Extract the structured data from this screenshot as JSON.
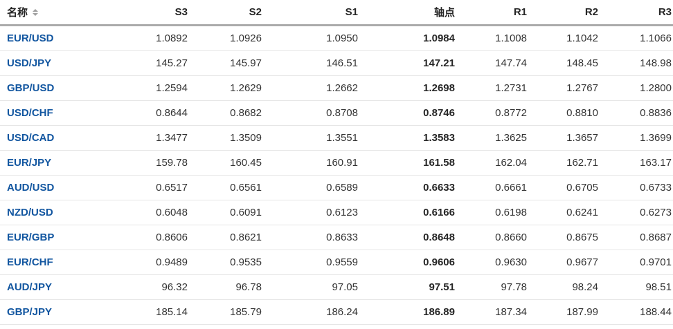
{
  "colors": {
    "pair_link": "#1256a0",
    "value_text": "#333333",
    "pivot_text": "#262626",
    "header_border": "#ababab",
    "row_divider": "#e6e6e6",
    "sort_icon": "#a0a0a0"
  },
  "table": {
    "columns": [
      {
        "key": "name",
        "label": "名称",
        "sortable": true,
        "align": "left"
      },
      {
        "key": "s3",
        "label": "S3",
        "sortable": false,
        "align": "right"
      },
      {
        "key": "s2",
        "label": "S2",
        "sortable": false,
        "align": "right"
      },
      {
        "key": "s1",
        "label": "S1",
        "sortable": false,
        "align": "right"
      },
      {
        "key": "pivot",
        "label": "轴点",
        "sortable": false,
        "align": "right"
      },
      {
        "key": "r1",
        "label": "R1",
        "sortable": false,
        "align": "right"
      },
      {
        "key": "r2",
        "label": "R2",
        "sortable": false,
        "align": "right"
      },
      {
        "key": "r3",
        "label": "R3",
        "sortable": false,
        "align": "right"
      }
    ],
    "rows": [
      {
        "name": "EUR/USD",
        "s3": "1.0892",
        "s2": "1.0926",
        "s1": "1.0950",
        "pivot": "1.0984",
        "r1": "1.1008",
        "r2": "1.1042",
        "r3": "1.1066"
      },
      {
        "name": "USD/JPY",
        "s3": "145.27",
        "s2": "145.97",
        "s1": "146.51",
        "pivot": "147.21",
        "r1": "147.74",
        "r2": "148.45",
        "r3": "148.98"
      },
      {
        "name": "GBP/USD",
        "s3": "1.2594",
        "s2": "1.2629",
        "s1": "1.2662",
        "pivot": "1.2698",
        "r1": "1.2731",
        "r2": "1.2767",
        "r3": "1.2800"
      },
      {
        "name": "USD/CHF",
        "s3": "0.8644",
        "s2": "0.8682",
        "s1": "0.8708",
        "pivot": "0.8746",
        "r1": "0.8772",
        "r2": "0.8810",
        "r3": "0.8836"
      },
      {
        "name": "USD/CAD",
        "s3": "1.3477",
        "s2": "1.3509",
        "s1": "1.3551",
        "pivot": "1.3583",
        "r1": "1.3625",
        "r2": "1.3657",
        "r3": "1.3699"
      },
      {
        "name": "EUR/JPY",
        "s3": "159.78",
        "s2": "160.45",
        "s1": "160.91",
        "pivot": "161.58",
        "r1": "162.04",
        "r2": "162.71",
        "r3": "163.17"
      },
      {
        "name": "AUD/USD",
        "s3": "0.6517",
        "s2": "0.6561",
        "s1": "0.6589",
        "pivot": "0.6633",
        "r1": "0.6661",
        "r2": "0.6705",
        "r3": "0.6733"
      },
      {
        "name": "NZD/USD",
        "s3": "0.6048",
        "s2": "0.6091",
        "s1": "0.6123",
        "pivot": "0.6166",
        "r1": "0.6198",
        "r2": "0.6241",
        "r3": "0.6273"
      },
      {
        "name": "EUR/GBP",
        "s3": "0.8606",
        "s2": "0.8621",
        "s1": "0.8633",
        "pivot": "0.8648",
        "r1": "0.8660",
        "r2": "0.8675",
        "r3": "0.8687"
      },
      {
        "name": "EUR/CHF",
        "s3": "0.9489",
        "s2": "0.9535",
        "s1": "0.9559",
        "pivot": "0.9606",
        "r1": "0.9630",
        "r2": "0.9677",
        "r3": "0.9701"
      },
      {
        "name": "AUD/JPY",
        "s3": "96.32",
        "s2": "96.78",
        "s1": "97.05",
        "pivot": "97.51",
        "r1": "97.78",
        "r2": "98.24",
        "r3": "98.51"
      },
      {
        "name": "GBP/JPY",
        "s3": "185.14",
        "s2": "185.79",
        "s1": "186.24",
        "pivot": "186.89",
        "r1": "187.34",
        "r2": "187.99",
        "r3": "188.44"
      }
    ]
  }
}
